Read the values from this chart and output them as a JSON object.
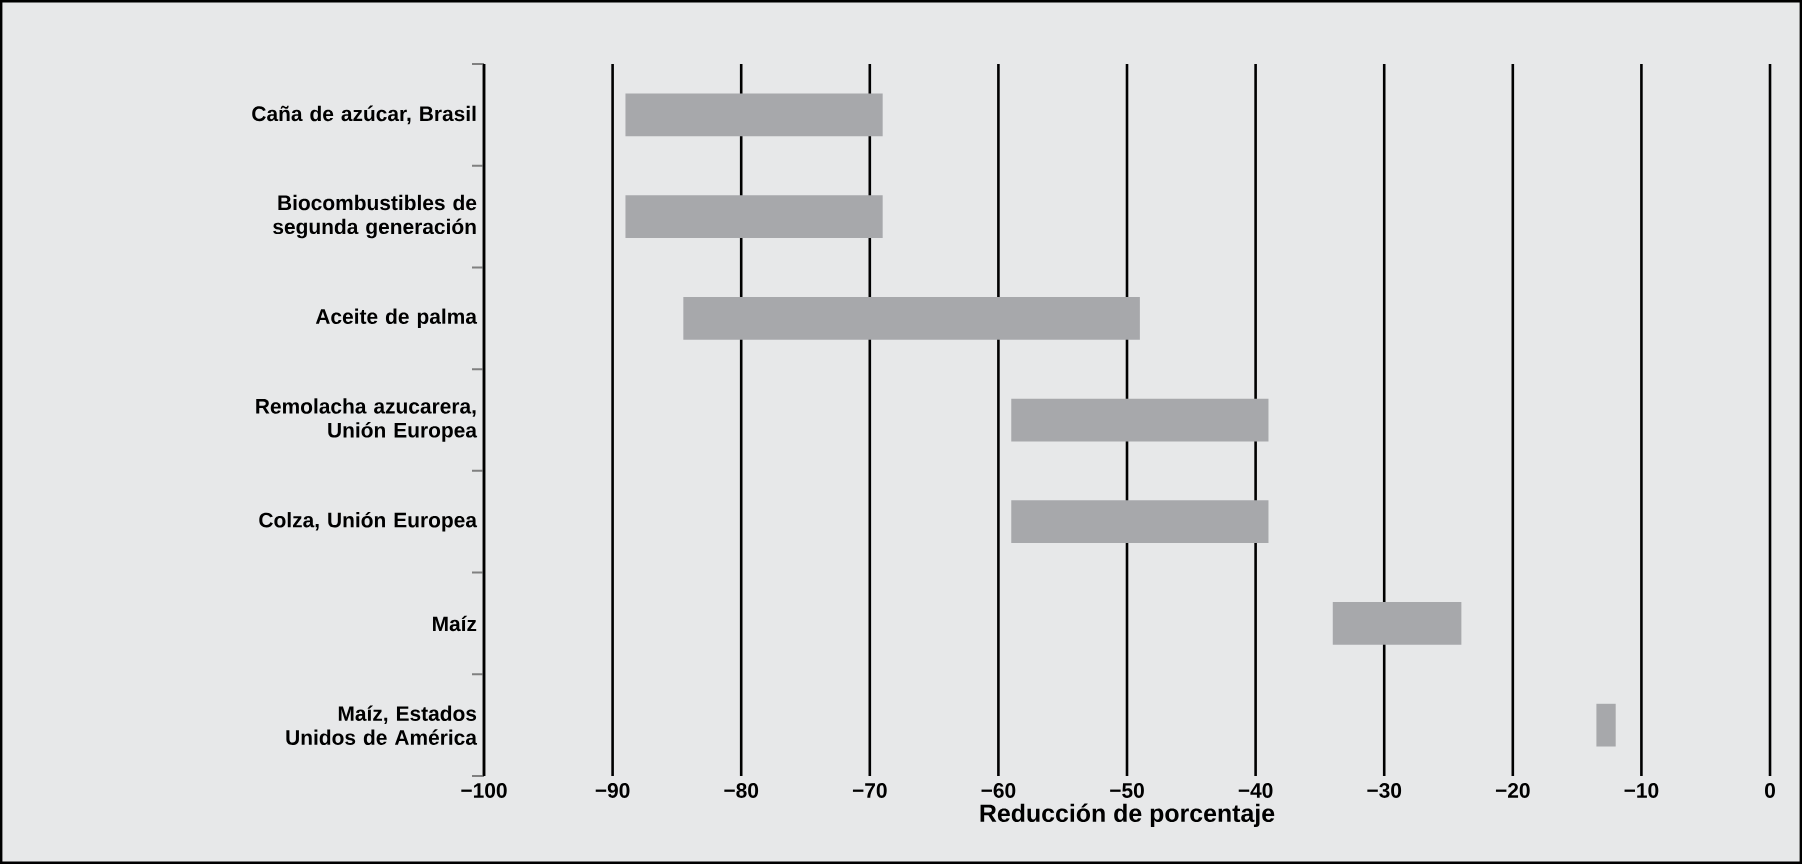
{
  "chart_data": {
    "type": "bar",
    "orientation": "horizontal",
    "xlabel": "Reducción de porcentaje",
    "categories": [
      "Caña de azúcar, Brasil",
      "Biocombustibles de segunda generación",
      "Aceite de palma",
      "Remolacha azucarera, Unión Europea",
      "Colza, Unión Europea",
      "Maíz",
      "Maíz, Estados Unidos de América"
    ],
    "base": [
      -89,
      -89,
      -84.5,
      -59,
      -59,
      -34,
      -13.5
    ],
    "values": [
      20,
      20,
      35.5,
      20,
      20,
      10,
      1.5
    ],
    "color": "#a7a8ab",
    "xlim": [
      -100,
      0
    ],
    "xticks": [
      {
        "value": -100,
        "label": "−100"
      },
      {
        "value": -90,
        "label": "−90"
      },
      {
        "value": -80,
        "label": "−80"
      },
      {
        "value": -70,
        "label": "−70"
      },
      {
        "value": -60,
        "label": "−60"
      },
      {
        "value": -50,
        "label": "−50"
      },
      {
        "value": -40,
        "label": "−40"
      },
      {
        "value": -30,
        "label": "−30"
      },
      {
        "value": -20,
        "label": "−20"
      },
      {
        "value": -10,
        "label": "−10"
      },
      0
    ],
    "grid": "x"
  }
}
